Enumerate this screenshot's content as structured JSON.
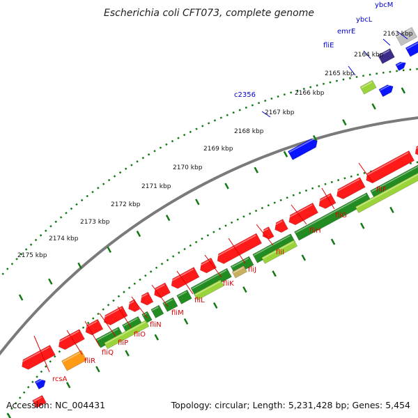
{
  "title": "Escherichia coli CFT073, complete genome",
  "footer": {
    "accession_label": "Accession: NC_004431",
    "summary": "Topology: circular; Length: 5,231,428 bp; Genes: 5,454"
  },
  "colors": {
    "red_gene": "#ff1a1a",
    "blue_gene": "#0a14ff",
    "navy_gene": "#3d2b8a",
    "gray_gene": "#c0c0c0",
    "dark_green": "#228b22",
    "light_green": "#9bd43a",
    "tan": "#c8b060",
    "orange_gene": "#ff9a14",
    "ring_green": "#127812",
    "backbone": "#7a7a7a",
    "label_blue": "#0000cc",
    "label_red": "#dd0000"
  },
  "kbp_ticks": [
    "2163 kbp",
    "2164 kbp",
    "2165 kbp",
    "2166 kbp",
    "2167 kbp",
    "2168 kbp",
    "2169 kbp",
    "2170 kbp",
    "2171 kbp",
    "2172 kbp",
    "2173 kbp",
    "2174 kbp",
    "2175 kbp"
  ],
  "top_labels": [
    "ybcM",
    "ybcL",
    "emrE",
    "fliE",
    "c2356"
  ],
  "bottom_labels": [
    "fliF",
    "fliG",
    "fliH",
    "fliI",
    "fliJ",
    "fliK",
    "fliL",
    "fliM",
    "fliN",
    "fliO",
    "fliP",
    "fliQ",
    "fliR",
    "rcsA"
  ]
}
